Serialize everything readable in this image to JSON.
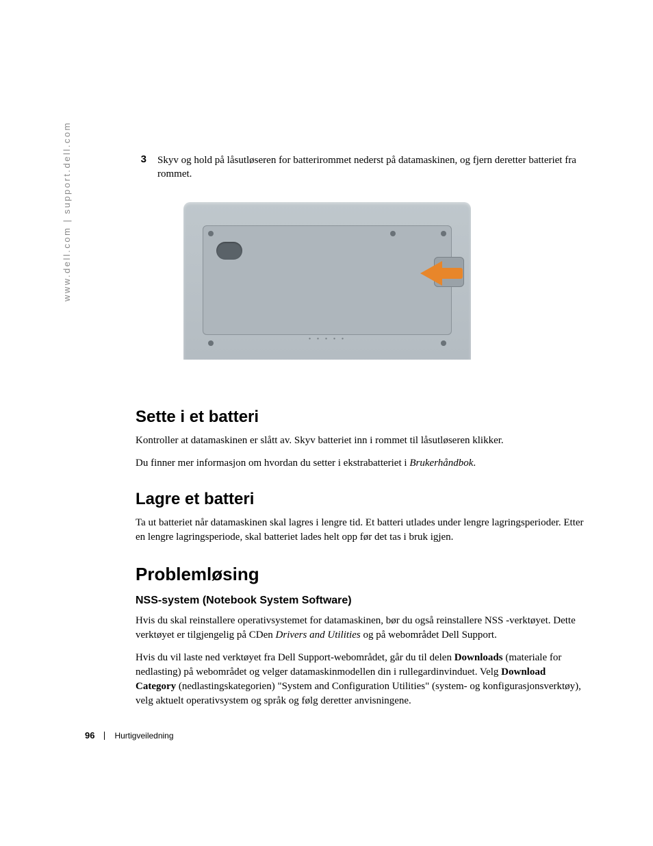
{
  "sidebar": {
    "url_text": "www.dell.com | support.dell.com"
  },
  "step": {
    "number": "3",
    "text": "Skyv og hold på låsutløseren for batterirommet nederst på datamaskinen, og fjern deretter batteriet fra rommet."
  },
  "figure": {
    "arrow_color": "#e8862a",
    "panel_color": "#aeb6bc",
    "body_color": "#bfc7cc"
  },
  "sections": {
    "insert": {
      "heading": "Sette i et batteri",
      "p1_a": "Kontroller at datamaskinen er slått av. Skyv batteriet inn i rommet til låsutløseren klikker.",
      "p2_a": "Du finner mer informasjon om hvordan du setter i ekstrabatteriet i ",
      "p2_em": "Brukerhåndbok",
      "p2_b": "."
    },
    "store": {
      "heading": "Lagre et batteri",
      "p1": "Ta ut batteriet når datamaskinen skal lagres i lengre tid. Et batteri utlades under lengre lagringsperioder. Etter en lengre lagringsperiode, skal batteriet lades helt opp før det tas i bruk igjen."
    },
    "trouble": {
      "heading": "Problemløsing",
      "sub": "NSS-system (Notebook System Software)",
      "p1_a": "Hvis du skal reinstallere operativsystemet for datamaskinen, bør du også reinstallere NSS -verktøyet. Dette verktøyet er tilgjengelig på CDen ",
      "p1_em": "Drivers and Utilities",
      "p1_b": " og på webområdet Dell Support.",
      "p2_a": "Hvis du vil laste ned verktøyet fra Dell Support-webområdet, går du til delen ",
      "p2_bold1": "Downloads",
      "p2_b": " (materiale for nedlasting) på webområdet og velger datamaskinmodellen din i rullegardinvinduet. Velg ",
      "p2_bold2": "Download Category",
      "p2_c": " (nedlastingskategorien) \"System and Configuration Utilities\" (system- og konfigurasjonsverktøy), velg aktuelt operativsystem og språk og følg deretter anvisningene."
    }
  },
  "footer": {
    "page_number": "96",
    "doc_title": "Hurtigveiledning"
  }
}
